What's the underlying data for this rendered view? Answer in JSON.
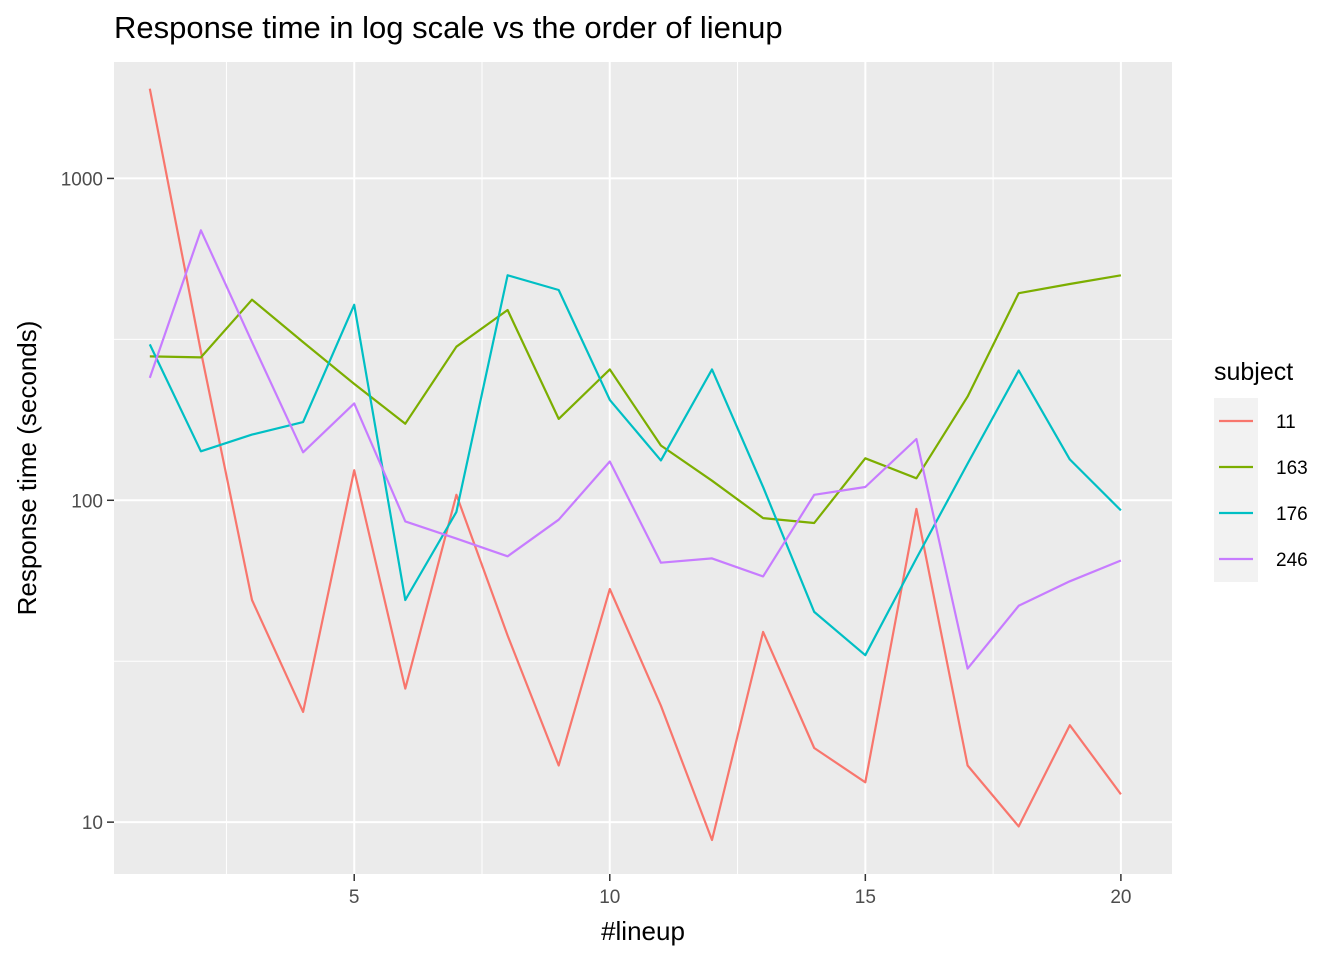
{
  "chart_data": {
    "type": "line",
    "title": "Response time in log scale vs the order of lienup",
    "xlabel": "#lineup",
    "ylabel": "Response time (seconds)",
    "y_scale": "log10",
    "xlim": [
      0.3,
      21
    ],
    "ylim": [
      6.9,
      2300
    ],
    "x_ticks": [
      5,
      10,
      15,
      20
    ],
    "x_tick_labels": [
      "5",
      "10",
      "15",
      "20"
    ],
    "y_ticks": [
      10,
      100,
      1000
    ],
    "y_tick_labels": [
      "10",
      "100",
      "1000"
    ],
    "grid": true,
    "legend_position": "right",
    "legend_title": "subject",
    "x": [
      1,
      2,
      3,
      4,
      5,
      6,
      7,
      8,
      9,
      10,
      11,
      12,
      13,
      14,
      15,
      16,
      17,
      18,
      19,
      20
    ],
    "series": [
      {
        "name": "11",
        "color": "#F8766D",
        "values": [
          1900,
          290,
          49,
          22,
          124,
          26,
          104,
          38,
          15,
          53,
          23,
          8.8,
          39,
          17,
          13.3,
          94,
          15,
          9.7,
          20,
          12.2
        ]
      },
      {
        "name": "163",
        "color": "#7CAE00",
        "values": [
          280,
          278,
          420,
          310,
          230,
          173,
          300,
          390,
          179,
          255,
          148,
          115,
          88,
          85,
          135,
          117,
          210,
          440,
          470,
          500
        ]
      },
      {
        "name": "176",
        "color": "#00BFC4",
        "values": [
          305,
          142,
          160,
          175,
          405,
          49,
          92,
          500,
          450,
          205,
          133,
          255,
          110,
          45,
          33,
          66,
          130,
          253,
          134,
          93
        ]
      },
      {
        "name": "246",
        "color": "#C77CFF",
        "values": [
          240,
          690,
          310,
          141,
          200,
          86,
          76,
          67,
          87,
          132,
          64,
          66,
          58,
          104,
          110,
          155,
          30,
          47,
          56,
          65
        ]
      }
    ]
  }
}
